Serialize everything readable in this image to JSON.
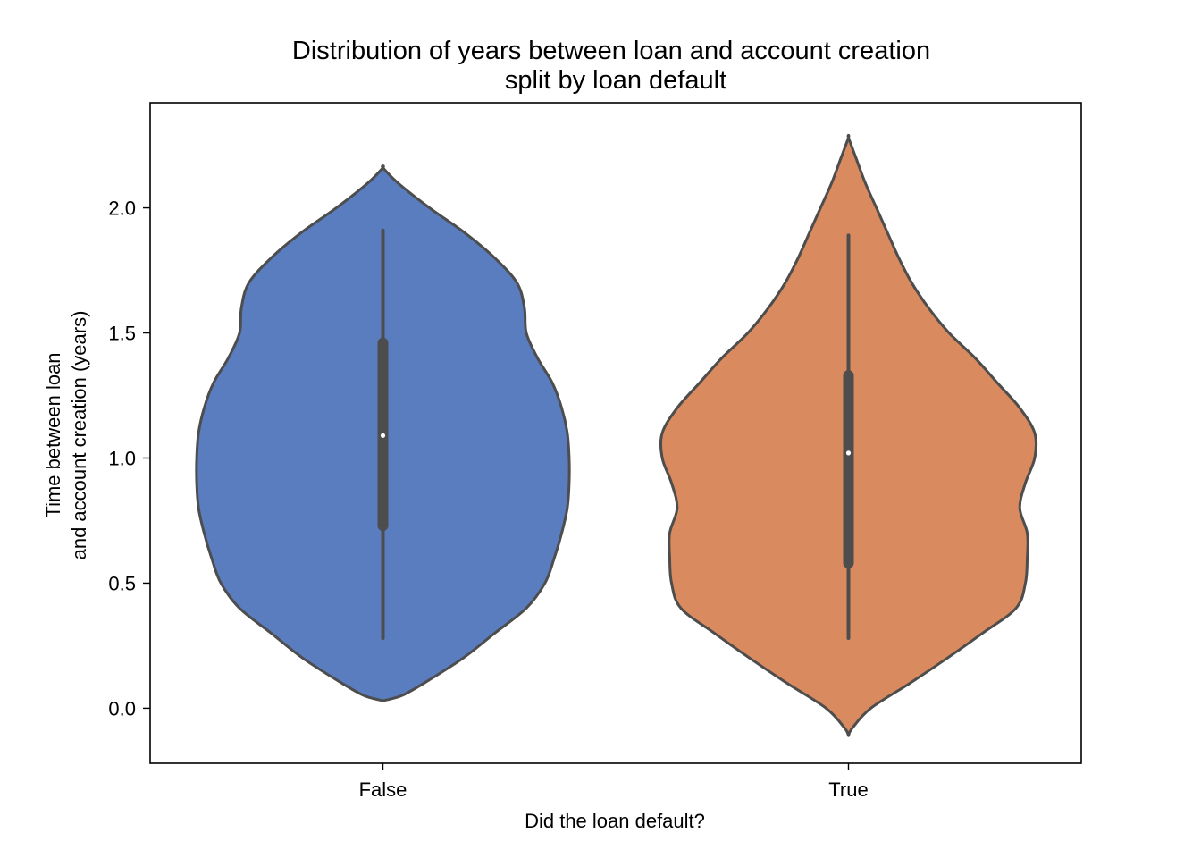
{
  "chart_data": {
    "type": "violin",
    "title": "Distribution of years between loan and account creation",
    "subtitle": "split by loan default",
    "xlabel": "Did the loan default?",
    "ylabel_line1": "Time between loan",
    "ylabel_line2": "and account creation (years)",
    "categories": [
      "False",
      "True"
    ],
    "ylim": [
      -0.22,
      2.42
    ],
    "yticks": [
      {
        "value": 0.0,
        "label": "0.0"
      },
      {
        "value": 0.5,
        "label": "0.5"
      },
      {
        "value": 1.0,
        "label": "1.0"
      },
      {
        "value": 1.5,
        "label": "1.5"
      },
      {
        "value": 2.0,
        "label": "2.0"
      }
    ],
    "grid": false,
    "legend": "none",
    "series": [
      {
        "category": "False",
        "color": "#5a7dbf",
        "min": 0.28,
        "q1": 0.73,
        "median": 1.09,
        "q3": 1.46,
        "max": 1.91,
        "kde_y": [
          0.03,
          0.05,
          0.1,
          0.2,
          0.3,
          0.4,
          0.5,
          0.6,
          0.7,
          0.8,
          0.9,
          1.0,
          1.1,
          1.2,
          1.3,
          1.4,
          1.5,
          1.6,
          1.7,
          1.8,
          1.9,
          2.0,
          2.1,
          2.16
        ],
        "kde_width": [
          0.0,
          0.1,
          0.22,
          0.43,
          0.6,
          0.77,
          0.87,
          0.92,
          0.96,
          0.99,
          1.0,
          1.0,
          0.99,
          0.96,
          0.91,
          0.83,
          0.77,
          0.76,
          0.72,
          0.6,
          0.44,
          0.25,
          0.08,
          0.0
        ]
      },
      {
        "category": "True",
        "color": "#d98a5e",
        "min": 0.28,
        "q1": 0.58,
        "median": 1.02,
        "q3": 1.33,
        "max": 1.89,
        "kde_y": [
          -0.11,
          -0.08,
          0.0,
          0.1,
          0.2,
          0.3,
          0.4,
          0.5,
          0.6,
          0.7,
          0.8,
          0.9,
          1.0,
          1.1,
          1.2,
          1.3,
          1.4,
          1.5,
          1.6,
          1.7,
          1.8,
          1.9,
          2.0,
          2.1,
          2.2,
          2.28
        ],
        "kde_width": [
          0.0,
          0.02,
          0.12,
          0.33,
          0.53,
          0.72,
          0.9,
          0.95,
          0.96,
          0.96,
          0.92,
          0.95,
          1.0,
          1.0,
          0.92,
          0.8,
          0.68,
          0.54,
          0.43,
          0.34,
          0.27,
          0.21,
          0.15,
          0.09,
          0.04,
          0.0
        ]
      }
    ]
  }
}
